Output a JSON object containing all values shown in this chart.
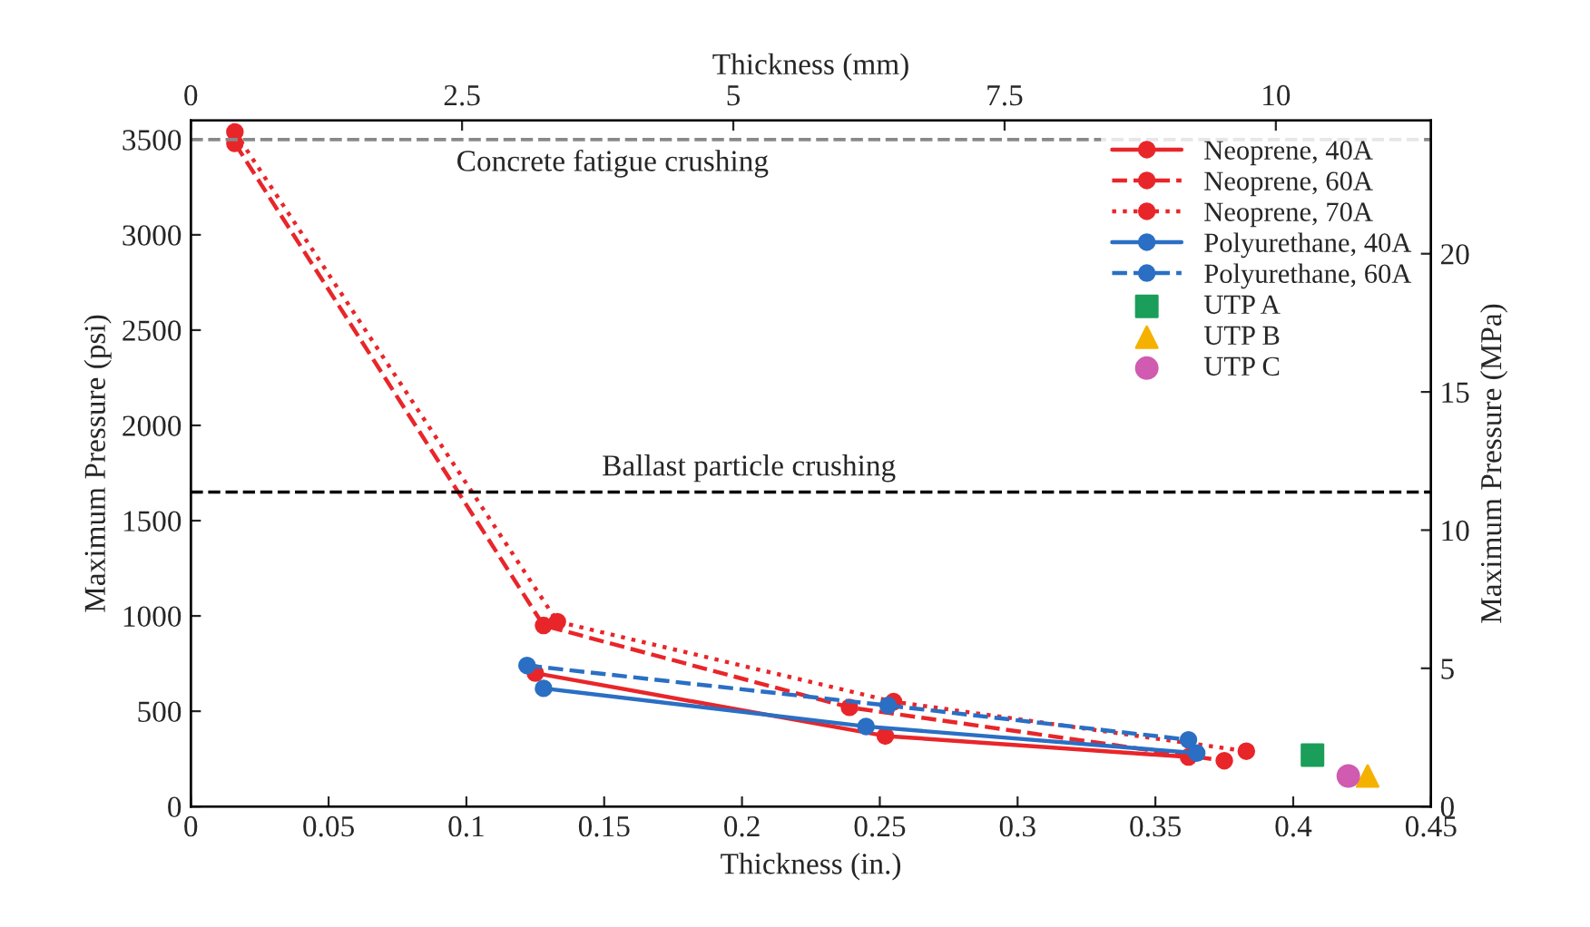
{
  "chart_data": {
    "type": "line",
    "xlabel": "Thickness (in.)",
    "ylabel": "Maximum Pressure (psi)",
    "y2label": "Maximum Pressure (MPa)",
    "x2label": "Thickness (mm)",
    "xlim": [
      0,
      0.45
    ],
    "xticks": [
      0,
      0.05,
      0.1,
      0.15,
      0.2,
      0.25,
      0.3,
      0.35,
      0.4,
      0.45
    ],
    "ylim": [
      0,
      3600
    ],
    "yticks": [
      0,
      500,
      1000,
      1500,
      2000,
      2500,
      3000,
      3500
    ],
    "y2lim": [
      0,
      24.82
    ],
    "y2ticks": [
      0,
      5,
      10,
      15,
      20
    ],
    "x2lim": [
      0,
      11.43
    ],
    "x2ticks": [
      0,
      2.5,
      5,
      7.5,
      10
    ],
    "grid": false,
    "legend": "top right",
    "series": [
      {
        "name": "Neoprene, 40A",
        "color": "#e8262a",
        "line_style": "solid",
        "marker": "circle",
        "x": [
          0.125,
          0.252,
          0.362
        ],
        "values": [
          700,
          370,
          260
        ]
      },
      {
        "name": "Neoprene, 60A",
        "color": "#e8262a",
        "line_style": "dashed",
        "marker": "circle",
        "x": [
          0.016,
          0.128,
          0.239,
          0.375
        ],
        "values": [
          3480,
          950,
          520,
          240
        ]
      },
      {
        "name": "Neoprene, 70A",
        "color": "#e8262a",
        "line_style": "dotted",
        "marker": "circle",
        "x": [
          0.016,
          0.133,
          0.255,
          0.383
        ],
        "values": [
          3540,
          970,
          550,
          290
        ]
      },
      {
        "name": "Polyurethane, 40A",
        "color": "#2a6fc4",
        "line_style": "solid",
        "marker": "circle",
        "x": [
          0.128,
          0.245,
          0.365
        ],
        "values": [
          620,
          420,
          280
        ]
      },
      {
        "name": "Polyurethane, 60A",
        "color": "#2a6fc4",
        "line_style": "dashed",
        "marker": "circle",
        "x": [
          0.122,
          0.253,
          0.362
        ],
        "values": [
          740,
          530,
          350
        ]
      },
      {
        "name": "UTP A",
        "type": "scatter",
        "color": "#1a9e5a",
        "marker": "square",
        "x": [
          0.407
        ],
        "values": [
          270
        ]
      },
      {
        "name": "UTP B",
        "type": "scatter",
        "color": "#f5b100",
        "marker": "triangle",
        "x": [
          0.427
        ],
        "values": [
          160
        ]
      },
      {
        "name": "UTP C",
        "type": "scatter",
        "color": "#d05bb0",
        "marker": "circle",
        "x": [
          0.42
        ],
        "values": [
          160
        ]
      }
    ],
    "ref_lines": [
      {
        "axis": "y",
        "value": 3500,
        "label": "Concrete fatigue crushing",
        "color": "#888888",
        "line_style": "dashed"
      },
      {
        "axis": "y",
        "value": 1650,
        "label": "Ballast particle crushing",
        "color": "#000000",
        "line_style": "dashed"
      }
    ]
  }
}
